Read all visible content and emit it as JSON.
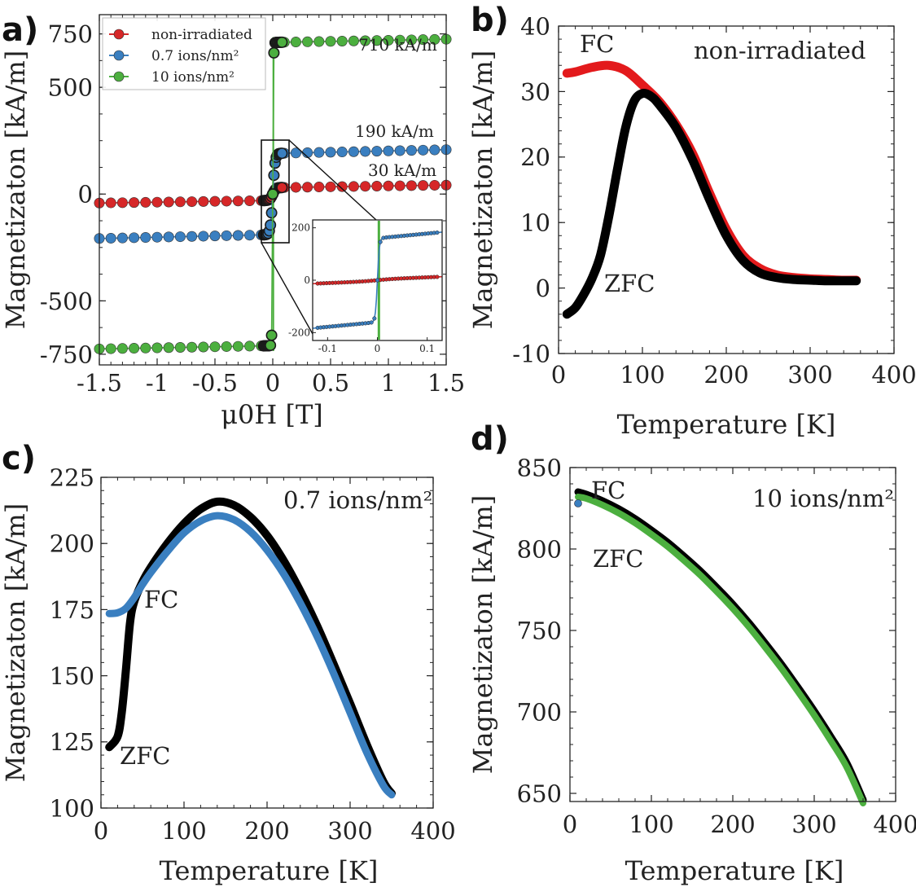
{
  "colors": {
    "red": "#d62728",
    "blue": "#3a7fc0",
    "green": "#4caf3f",
    "black": "#000000"
  },
  "panels": {
    "a": {
      "letter": "a)",
      "chart_data": {
        "type": "line",
        "xlabel": "μ0H [T]",
        "ylabel": "Magnetizaton [kA/m]",
        "xlim": [
          -1.5,
          1.5
        ],
        "ylim": [
          -800,
          840
        ],
        "xticks": [
          -1.5,
          -1,
          -0.5,
          0,
          0.5,
          1,
          1.5
        ],
        "xtick_labels": [
          "-1.5",
          "-1",
          "-0.5",
          "0",
          "0.5",
          "1",
          "1.5"
        ],
        "yticks": [
          -750,
          -500,
          0,
          500,
          750
        ],
        "ytick_labels": [
          "-750",
          "-500",
          "0",
          "500",
          "750"
        ],
        "legend_position": "top-left",
        "series": [
          {
            "name": "non-irradiated",
            "color": "#d62728",
            "saturation": 30
          },
          {
            "name": "0.7 ions/nm²",
            "color": "#3a7fc0",
            "saturation": 190
          },
          {
            "name": "10 ions/nm²",
            "color": "#4caf3f",
            "saturation": 710
          }
        ],
        "annotations": [
          "710 kA/m",
          "190 kA/m",
          "30 kA/m"
        ],
        "inset": {
          "xlim": [
            -0.13,
            0.13
          ],
          "ylim": [
            -230,
            230
          ],
          "xticks": [
            -0.1,
            0,
            0.1
          ],
          "xtick_labels": [
            "-0.1",
            "0",
            "0.1"
          ],
          "yticks": [
            -200,
            0,
            200
          ],
          "ytick_labels": [
            "-200",
            "0",
            "200"
          ]
        }
      }
    },
    "b": {
      "letter": "b)",
      "chart_data": {
        "type": "line",
        "title": "non-irradiated",
        "xlabel": "Temperature [K]",
        "ylabel": "Magnetizaton [kA/m]",
        "xlim": [
          0,
          400
        ],
        "ylim": [
          -10,
          40
        ],
        "xticks": [
          0,
          100,
          200,
          300,
          400
        ],
        "yticks": [
          -10,
          0,
          10,
          20,
          30,
          40
        ],
        "series": [
          {
            "name": "FC",
            "color": "#e31a1c",
            "x": [
              10,
              20,
              40,
              60,
              80,
              100,
              120,
              140,
              160,
              180,
              200,
              220,
              240,
              260,
              280,
              300,
              320,
              340,
              355
            ],
            "values": [
              32.8,
              33.0,
              33.7,
              34.0,
              33.2,
              31.0,
              28.5,
              25.0,
              20.5,
              14.5,
              9.0,
              5.0,
              3.0,
              2.0,
              1.6,
              1.4,
              1.3,
              1.2,
              1.2
            ]
          },
          {
            "name": "ZFC",
            "color": "#000000",
            "x": [
              10,
              20,
              30,
              40,
              50,
              60,
              70,
              80,
              90,
              100,
              110,
              120,
              140,
              160,
              180,
              200,
              220,
              240,
              260,
              280,
              300,
              320,
              340,
              355
            ],
            "values": [
              -4.0,
              -3.0,
              -1.0,
              1.5,
              5.0,
              11.0,
              18.0,
              24.5,
              28.5,
              29.7,
              29.3,
              28.0,
              24.5,
              19.5,
              13.5,
              8.0,
              4.2,
              2.3,
              1.6,
              1.3,
              1.2,
              1.1,
              1.1,
              1.1
            ]
          }
        ]
      }
    },
    "c": {
      "letter": "c)",
      "chart_data": {
        "type": "line",
        "title": "0.7 ions/nm²",
        "xlabel": "Temperature [K]",
        "ylabel": "Magnetizaton [kA/m]",
        "xlim": [
          0,
          400
        ],
        "ylim": [
          100,
          225
        ],
        "xticks": [
          0,
          100,
          200,
          300,
          400
        ],
        "yticks": [
          100,
          125,
          150,
          175,
          200,
          225
        ],
        "series": [
          {
            "name": "FC",
            "color": "#3a7fc0",
            "x": [
              10,
              20,
              30,
              40,
              50,
              60,
              80,
              100,
              120,
              140,
              160,
              180,
              200,
              220,
              240,
              260,
              280,
              300,
              320,
              340,
              350
            ],
            "values": [
              173.5,
              173.8,
              175.5,
              179.5,
              184.5,
              189.0,
              197.0,
              204.0,
              208.5,
              210.5,
              209.0,
              204.5,
              197.5,
              188.5,
              177.5,
              165.0,
              151.0,
              136.0,
              121.0,
              108.5,
              105.0
            ]
          },
          {
            "name": "ZFC",
            "color": "#000000",
            "x": [
              10,
              20,
              25,
              30,
              35,
              40,
              50,
              60,
              80,
              100,
              120,
              140,
              160,
              180,
              200,
              220,
              240,
              260,
              280,
              300,
              320,
              340,
              350
            ],
            "values": [
              123.0,
              127.0,
              136.0,
              152.0,
              170.0,
              178.0,
              185.5,
              191.0,
              200.0,
              207.5,
              213.0,
              215.8,
              214.5,
              210.0,
              203.0,
              193.5,
              182.0,
              169.0,
              154.5,
              139.5,
              124.0,
              110.0,
              105.5
            ]
          }
        ]
      }
    },
    "d": {
      "letter": "d)",
      "chart_data": {
        "type": "line",
        "title": "10 ions/nm²",
        "xlabel": "Temperature [K]",
        "ylabel": "Magnetizaton [kA/m]",
        "xlim": [
          0,
          400
        ],
        "ylim": [
          645,
          850
        ],
        "xticks": [
          0,
          100,
          200,
          300,
          400
        ],
        "yticks": [
          650,
          700,
          750,
          800,
          850
        ],
        "series": [
          {
            "name": "ZFC",
            "color": "#000000",
            "x": [
              10,
              20,
              40,
              60,
              80,
              100,
              120,
              140,
              160,
              180,
              200,
              220,
              240,
              260,
              280,
              300,
              320,
              340,
              360
            ],
            "values": [
              835.0,
              833.5,
              829.5,
              824.5,
              818.5,
              811.5,
              804.0,
              795.5,
              786.5,
              776.5,
              766.0,
              754.5,
              742.0,
              729.0,
              715.0,
              700.5,
              685.0,
              668.5,
              646.0
            ]
          },
          {
            "name": "FC",
            "color": "#4caf3f",
            "x": [
              10,
              20,
              40,
              60,
              80,
              100,
              120,
              140,
              160,
              180,
              200,
              220,
              240,
              260,
              280,
              300,
              320,
              340,
              360
            ],
            "values": [
              832.0,
              831.0,
              827.0,
              822.0,
              816.0,
              809.0,
              801.5,
              793.0,
              784.0,
              774.0,
              763.5,
              752.0,
              739.5,
              726.5,
              712.5,
              698.0,
              682.5,
              666.0,
              644.0
            ]
          }
        ],
        "marker_point": {
          "x": 10,
          "y": 828,
          "color": "#3a7fc0"
        }
      }
    }
  }
}
